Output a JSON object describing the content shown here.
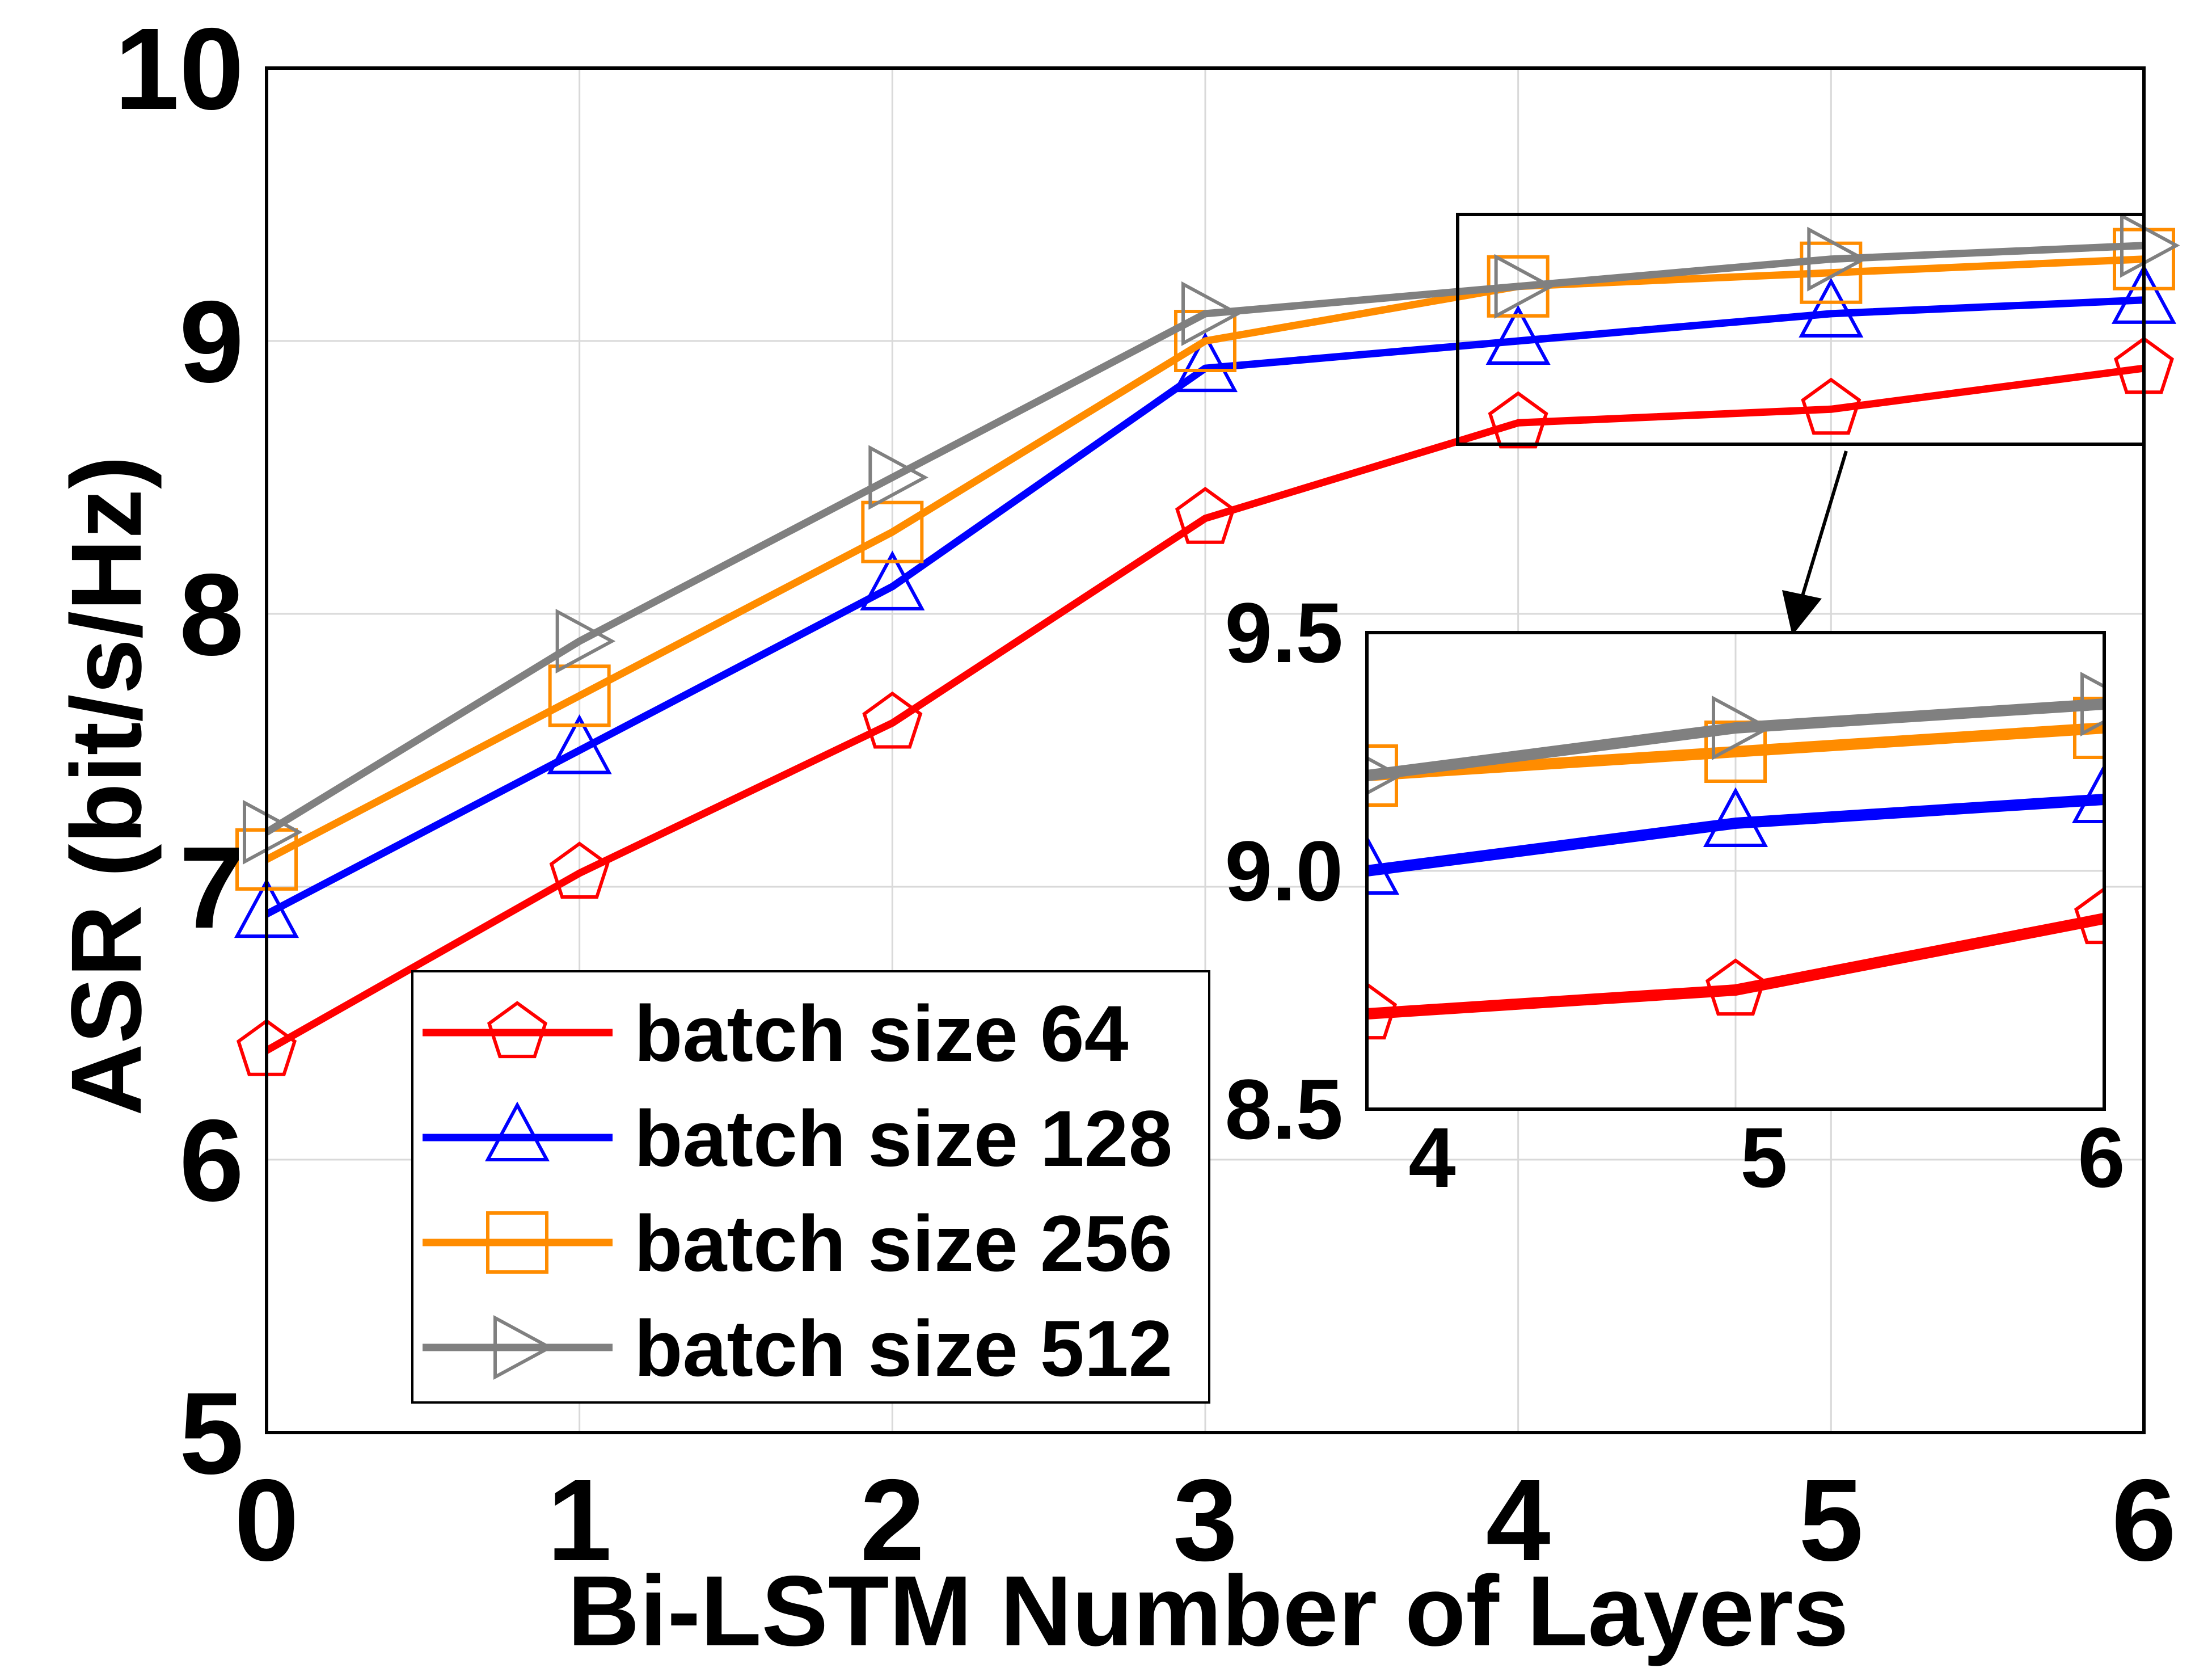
{
  "chart_data": {
    "type": "line",
    "title": "",
    "xlabel": "Bi-LSTM Number of Layers",
    "ylabel": "ASR (bit/s/Hz)",
    "x": [
      0,
      1,
      2,
      3,
      4,
      5,
      6
    ],
    "xlim": [
      0,
      6
    ],
    "ylim": [
      5,
      10
    ],
    "xticks": [
      "0",
      "1",
      "2",
      "3",
      "4",
      "5",
      "6"
    ],
    "yticks": [
      "5",
      "6",
      "7",
      "8",
      "9",
      "10"
    ],
    "grid": true,
    "legend_position": "bottom-left",
    "series": [
      {
        "name": "batch size 64",
        "color": "#ff0000",
        "marker": "pentagon",
        "values": [
          6.4,
          7.05,
          7.6,
          8.35,
          8.7,
          8.75,
          8.9
        ]
      },
      {
        "name": "batch size 128",
        "color": "#0000ff",
        "marker": "triangle-up",
        "values": [
          6.9,
          7.5,
          8.1,
          8.9,
          9.0,
          9.1,
          9.15
        ]
      },
      {
        "name": "batch size 256",
        "color": "#ff8c00",
        "marker": "square",
        "values": [
          7.1,
          7.7,
          8.3,
          9.0,
          9.2,
          9.25,
          9.3
        ]
      },
      {
        "name": "batch size 512",
        "color": "#808080",
        "marker": "triangle-right",
        "values": [
          7.2,
          7.9,
          8.5,
          9.1,
          9.2,
          9.3,
          9.35
        ]
      }
    ],
    "inset": {
      "xlim": [
        4,
        6
      ],
      "ylim": [
        8.5,
        9.5
      ],
      "xticks": [
        "4",
        "5",
        "6"
      ],
      "yticks": [
        "8.5",
        "9.0",
        "9.5"
      ],
      "x_values": [
        4,
        5,
        6
      ]
    }
  }
}
